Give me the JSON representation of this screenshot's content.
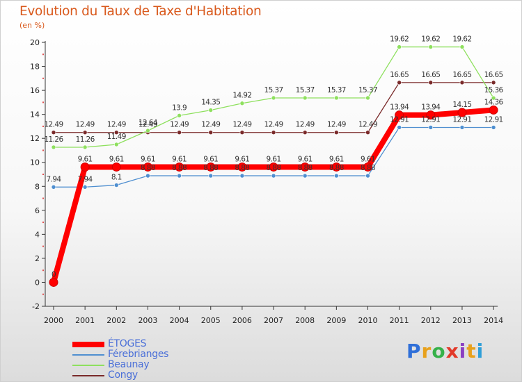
{
  "header": {
    "title": "Evolution du Taux de Taxe d'Habitation",
    "unit": "(en %)"
  },
  "chart_data": {
    "type": "line",
    "title": "Evolution du Taux de Taxe d'Habitation",
    "ylabel": "(en %)",
    "xlabel": "",
    "categories": [
      "2000",
      "2001",
      "2002",
      "2003",
      "2004",
      "2005",
      "2006",
      "2007",
      "2008",
      "2009",
      "2010",
      "2011",
      "2012",
      "2013",
      "2014"
    ],
    "ylim": [
      -2,
      20
    ],
    "yticks": [
      "-2",
      "0",
      "2",
      "4",
      "6",
      "8",
      "10",
      "12",
      "14",
      "16",
      "18",
      "20"
    ],
    "grid": false,
    "legend_position": "bottom-left",
    "series": [
      {
        "name": "ÉTOGES",
        "color": "#ff0000",
        "values": [
          0,
          9.61,
          9.61,
          9.61,
          9.61,
          9.61,
          9.61,
          9.61,
          9.61,
          9.61,
          9.61,
          13.94,
          13.94,
          14.15,
          14.36
        ],
        "labels": [
          "0",
          "9.61",
          "9.61",
          "9.61",
          "9.61",
          "9.61",
          "9.61",
          "9.61",
          "9.61",
          "9.61",
          "9.61",
          "13.94",
          "13.94",
          "14.15",
          "14.36"
        ]
      },
      {
        "name": "Férebrianges",
        "color": "#4f8fd0",
        "values": [
          7.94,
          7.94,
          8.1,
          8.88,
          8.88,
          8.88,
          8.88,
          8.88,
          8.88,
          8.88,
          8.88,
          12.91,
          12.91,
          12.91,
          12.91
        ],
        "labels": [
          "7.94",
          "7.94",
          "8.1",
          "8.88",
          "8.88",
          "8.88",
          "8.88",
          "8.88",
          "8.88",
          "8.88",
          "8.88",
          "12.91",
          "12.91",
          "12.91",
          "12.91"
        ]
      },
      {
        "name": "Beaunay",
        "color": "#8ee05e",
        "values": [
          11.26,
          11.26,
          11.49,
          12.64,
          13.9,
          14.35,
          14.92,
          15.37,
          15.37,
          15.37,
          15.37,
          19.62,
          19.62,
          19.62,
          15.36
        ],
        "labels": [
          "11.26",
          "11.26",
          "11.49",
          "12.64",
          "13.9",
          "14.35",
          "14.92",
          "15.37",
          "15.37",
          "15.37",
          "15.37",
          "19.62",
          "19.62",
          "19.62",
          "15.36"
        ]
      },
      {
        "name": "Congy",
        "color": "#7a2a2a",
        "values": [
          12.49,
          12.49,
          12.49,
          12.49,
          12.49,
          12.49,
          12.49,
          12.49,
          12.49,
          12.49,
          12.49,
          16.65,
          16.65,
          16.65,
          16.65
        ],
        "labels": [
          "12.49",
          "12.49",
          "12.49",
          "12.49",
          "12.49",
          "12.49",
          "12.49",
          "12.49",
          "12.49",
          "12.49",
          "12.49",
          "16.65",
          "16.65",
          "16.65",
          "16.65"
        ]
      }
    ]
  },
  "legend": {
    "items": [
      {
        "label": "ÉTOGES",
        "color": "#ff0000"
      },
      {
        "label": "Férebrianges",
        "color": "#4f8fd0"
      },
      {
        "label": "Beaunay",
        "color": "#8ee05e"
      },
      {
        "label": "Congy",
        "color": "#7a2a2a"
      }
    ]
  },
  "logo": {
    "letters": [
      "P",
      "r",
      "o",
      "x",
      "i",
      "t",
      "i"
    ],
    "colors": [
      "#2f6fd8",
      "#e8a11c",
      "#36b14a",
      "#e23a2a",
      "#8a3fc2",
      "#e8a11c",
      "#2f9fd8"
    ]
  }
}
